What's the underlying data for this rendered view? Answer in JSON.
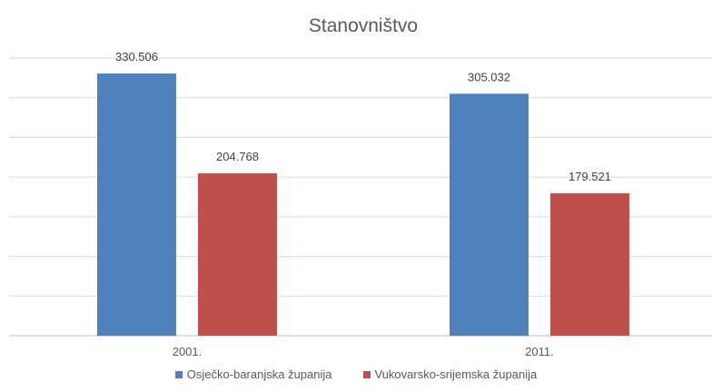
{
  "chart_data": {
    "type": "bar",
    "title": "Stanovništvo",
    "xlabel": "",
    "ylabel": "",
    "categories": [
      "2001.",
      "2011."
    ],
    "series": [
      {
        "name": "Osječko-baranjska županija",
        "values": [
          330506,
          305032
        ],
        "labels": [
          "330.506",
          "305.032"
        ],
        "color": "#4f81bd"
      },
      {
        "name": "Vukovarsko-srijemska županija",
        "values": [
          204768,
          179521
        ],
        "labels": [
          "204.768",
          "179.521"
        ],
        "color": "#c0504d"
      }
    ],
    "ylim": [
      0,
      350000
    ],
    "grid": true,
    "legend": "bottom"
  }
}
